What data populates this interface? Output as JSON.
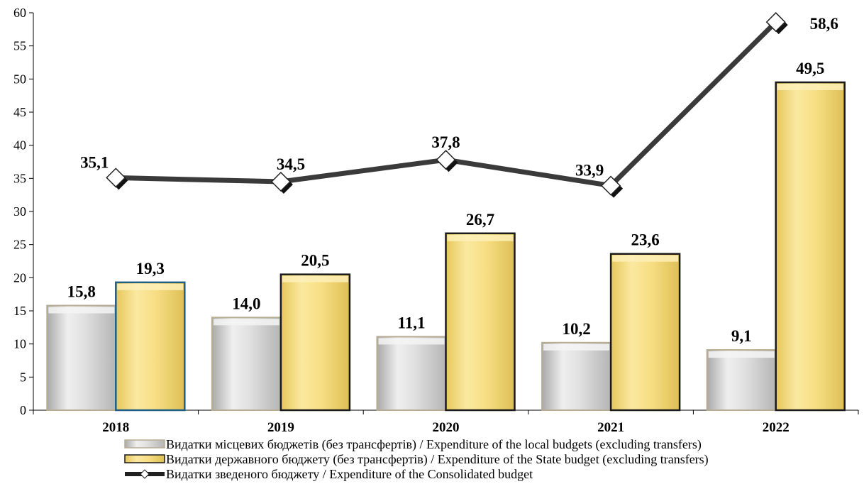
{
  "chart_data": {
    "type": "bar",
    "categories": [
      "2018",
      "2019",
      "2020",
      "2021",
      "2022"
    ],
    "series": [
      {
        "name": "Видатки  місцевих бюджетів (без трансфертів) / Expenditure of the local budgets (excluding transfers)",
        "kind": "bar",
        "values": [
          15.8,
          14.0,
          11.1,
          10.2,
          9.1
        ],
        "labels": [
          "15,8",
          "14,0",
          "11,1",
          "10,2",
          "9,1"
        ],
        "color": "#d6d6d6"
      },
      {
        "name": "Видатки державного бюджету (без трансфертів) / Expenditure of the State budget (excluding transfers)",
        "kind": "bar",
        "values": [
          19.3,
          20.5,
          26.7,
          23.6,
          49.5
        ],
        "labels": [
          "19,3",
          "20,5",
          "26,7",
          "23,6",
          "49,5"
        ],
        "color": "#f7df86"
      },
      {
        "name": "Видатки зведеного бюджету /  Expenditure of the Consolidated budget",
        "kind": "line",
        "values": [
          35.1,
          34.5,
          37.8,
          33.9,
          58.6
        ],
        "labels": [
          "35,1",
          "34,5",
          "37,8",
          "33,9",
          "58,6"
        ],
        "color": "#333333"
      }
    ],
    "y_ticks": [
      "0",
      "5",
      "10",
      "15",
      "20",
      "25",
      "30",
      "35",
      "40",
      "45",
      "50",
      "55",
      "60"
    ],
    "ylim": [
      0,
      60
    ],
    "grid": false,
    "legend_position": "bottom"
  }
}
